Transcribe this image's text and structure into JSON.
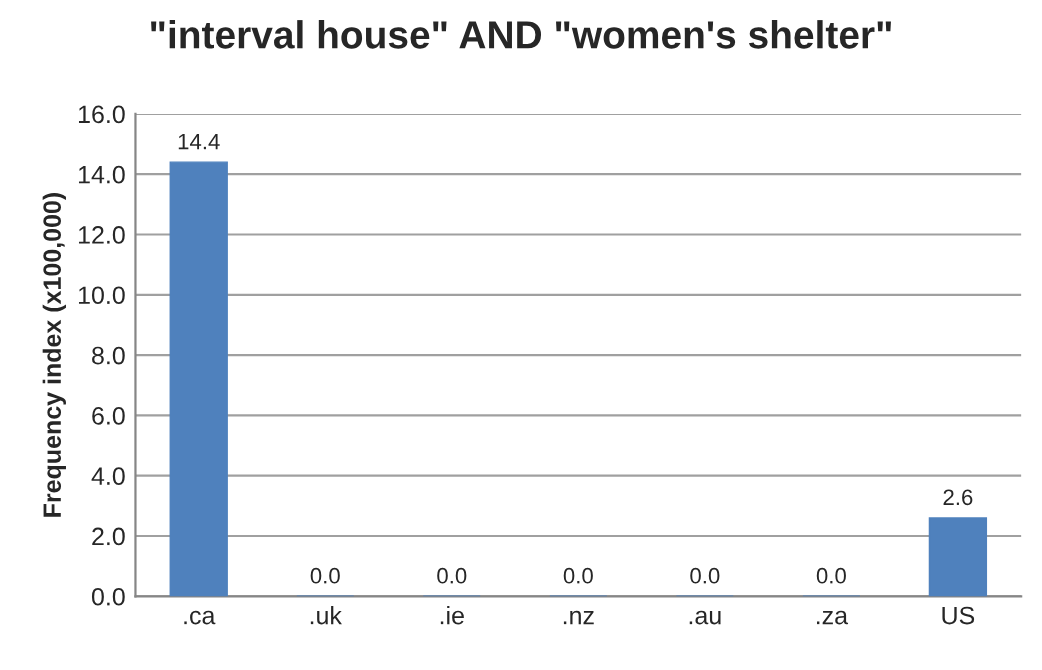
{
  "chart_data": {
    "type": "bar",
    "title": "\"interval house\" AND \"women's shelter\"",
    "ylabel": "Frequency index (x100,000)",
    "categories": [
      ".ca",
      ".uk",
      ".ie",
      ".nz",
      ".au",
      ".za",
      "US"
    ],
    "values": [
      14.4,
      0.0,
      0.0,
      0.0,
      0.0,
      0.0,
      2.6
    ],
    "value_labels": [
      "14.4",
      "0.0",
      "0.0",
      "0.0",
      "0.0",
      "0.0",
      "2.6"
    ],
    "color": "#4f81bd",
    "ylim": [
      0,
      16
    ],
    "yticks": [
      {
        "value": 0,
        "label": "0.0"
      },
      {
        "value": 2,
        "label": "2.0"
      },
      {
        "value": 4,
        "label": "4.0"
      },
      {
        "value": 6,
        "label": "6.0"
      },
      {
        "value": 8,
        "label": "8.0"
      },
      {
        "value": 10,
        "label": "10.0"
      },
      {
        "value": 12,
        "label": "12.0"
      },
      {
        "value": 14,
        "label": "14.0"
      },
      {
        "value": 16,
        "label": "16.0"
      }
    ],
    "grid": "y",
    "legend": false
  }
}
